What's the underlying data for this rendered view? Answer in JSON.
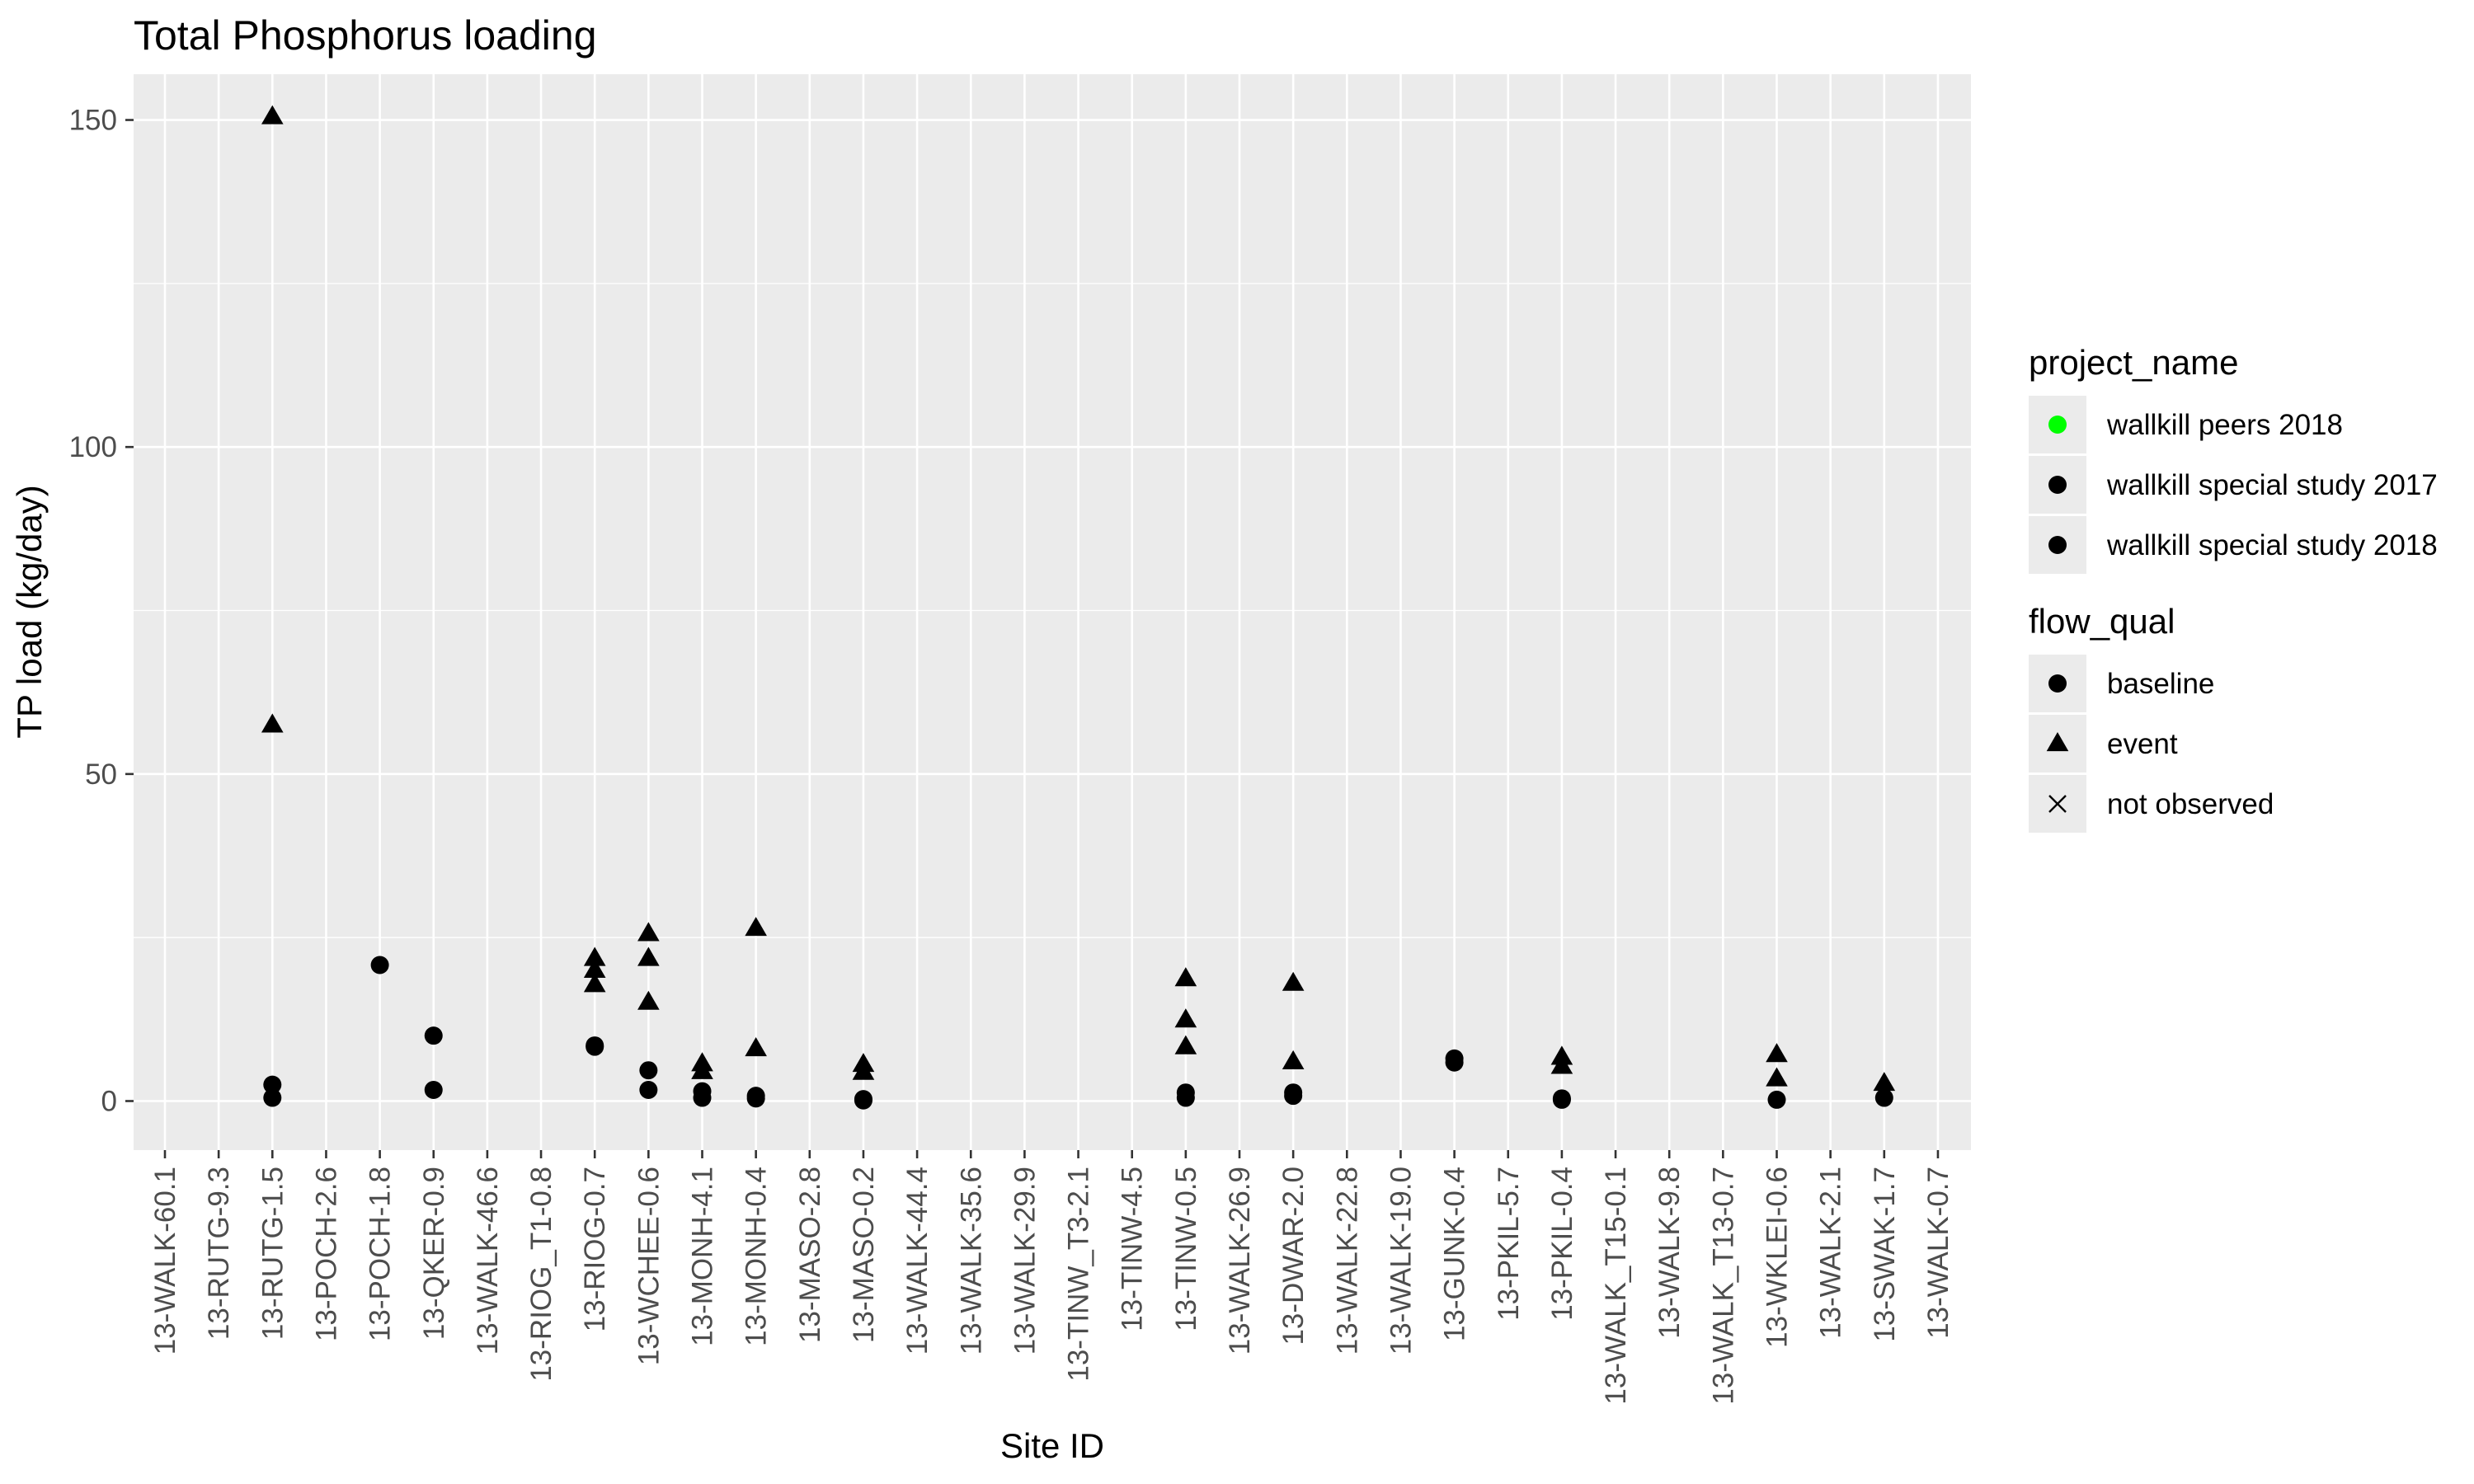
{
  "chart_data": {
    "type": "scatter",
    "title": "Total Phosphorus loading",
    "xlabel": "Site ID",
    "ylabel": "TP load (kg/day)",
    "ylim": [
      -7.5,
      157
    ],
    "yticks": [
      0,
      50,
      100,
      150
    ],
    "grid": true,
    "legend_placement": "right",
    "categories": [
      "13-WALK-60.1",
      "13-RUTG-9.3",
      "13-RUTG-1.5",
      "13-POCH-2.6",
      "13-POCH-1.8",
      "13-QKER-0.9",
      "13-WALK-46.6",
      "13-RIOG_T1-0.8",
      "13-RIOG-0.7",
      "13-WCHEE-0.6",
      "13-MONH-4.1",
      "13-MONH-0.4",
      "13-MASO-2.8",
      "13-MASO-0.2",
      "13-WALK-44.4",
      "13-WALK-35.6",
      "13-WALK-29.9",
      "13-TINW_T3-2.1",
      "13-TINW-4.5",
      "13-TINW-0.5",
      "13-WALK-26.9",
      "13-DWAR-2.0",
      "13-WALK-22.8",
      "13-WALK-19.0",
      "13-GUNK-0.4",
      "13-PKIL-5.7",
      "13-PKIL-0.4",
      "13-WALK_T15-0.1",
      "13-WALK-9.8",
      "13-WALK_T13-0.7",
      "13-WKLEI-0.6",
      "13-WALK-2.1",
      "13-SWAK-1.7",
      "13-WALK-0.7"
    ],
    "points": [
      {
        "x": "13-RUTG-1.5",
        "y": 150.5,
        "shape": "event"
      },
      {
        "x": "13-RUTG-1.5",
        "y": 57.5,
        "shape": "event"
      },
      {
        "x": "13-RUTG-1.5",
        "y": 2.5,
        "shape": "baseline"
      },
      {
        "x": "13-RUTG-1.5",
        "y": 0.5,
        "shape": "baseline"
      },
      {
        "x": "13-POCH-1.8",
        "y": 20.8,
        "shape": "baseline"
      },
      {
        "x": "13-QKER-0.9",
        "y": 10.0,
        "shape": "baseline"
      },
      {
        "x": "13-QKER-0.9",
        "y": 1.7,
        "shape": "baseline"
      },
      {
        "x": "13-RIOG-0.7",
        "y": 21.8,
        "shape": "event"
      },
      {
        "x": "13-RIOG-0.7",
        "y": 20.0,
        "shape": "event"
      },
      {
        "x": "13-RIOG-0.7",
        "y": 17.8,
        "shape": "event"
      },
      {
        "x": "13-RIOG-0.7",
        "y": 8.5,
        "shape": "baseline"
      },
      {
        "x": "13-RIOG-0.7",
        "y": 8.3,
        "shape": "baseline"
      },
      {
        "x": "13-WCHEE-0.6",
        "y": 25.6,
        "shape": "event"
      },
      {
        "x": "13-WCHEE-0.6",
        "y": 21.8,
        "shape": "event"
      },
      {
        "x": "13-WCHEE-0.6",
        "y": 15.1,
        "shape": "event"
      },
      {
        "x": "13-WCHEE-0.6",
        "y": 4.7,
        "shape": "baseline"
      },
      {
        "x": "13-WCHEE-0.6",
        "y": 1.7,
        "shape": "baseline"
      },
      {
        "x": "13-MONH-4.1",
        "y": 5.7,
        "shape": "event"
      },
      {
        "x": "13-MONH-4.1",
        "y": 4.5,
        "shape": "event"
      },
      {
        "x": "13-MONH-4.1",
        "y": 1.5,
        "shape": "baseline"
      },
      {
        "x": "13-MONH-4.1",
        "y": 0.5,
        "shape": "baseline"
      },
      {
        "x": "13-MONH-0.4",
        "y": 26.4,
        "shape": "event"
      },
      {
        "x": "13-MONH-0.4",
        "y": 8.0,
        "shape": "event"
      },
      {
        "x": "13-MONH-0.4",
        "y": 0.8,
        "shape": "baseline"
      },
      {
        "x": "13-MONH-0.4",
        "y": 0.4,
        "shape": "baseline"
      },
      {
        "x": "13-MASO-0.2",
        "y": 5.6,
        "shape": "event"
      },
      {
        "x": "13-MASO-0.2",
        "y": 4.4,
        "shape": "event"
      },
      {
        "x": "13-MASO-0.2",
        "y": 0.3,
        "shape": "baseline"
      },
      {
        "x": "13-MASO-0.2",
        "y": 0.1,
        "shape": "baseline"
      },
      {
        "x": "13-TINW-0.5",
        "y": 18.7,
        "shape": "event"
      },
      {
        "x": "13-TINW-0.5",
        "y": 12.4,
        "shape": "event"
      },
      {
        "x": "13-TINW-0.5",
        "y": 8.3,
        "shape": "event"
      },
      {
        "x": "13-TINW-0.5",
        "y": 1.3,
        "shape": "baseline"
      },
      {
        "x": "13-TINW-0.5",
        "y": 0.5,
        "shape": "baseline"
      },
      {
        "x": "13-DWAR-2.0",
        "y": 18.0,
        "shape": "event"
      },
      {
        "x": "13-DWAR-2.0",
        "y": 6.0,
        "shape": "event"
      },
      {
        "x": "13-DWAR-2.0",
        "y": 1.3,
        "shape": "baseline"
      },
      {
        "x": "13-DWAR-2.0",
        "y": 0.8,
        "shape": "baseline"
      },
      {
        "x": "13-GUNK-0.4",
        "y": 6.5,
        "shape": "baseline"
      },
      {
        "x": "13-GUNK-0.4",
        "y": 5.9,
        "shape": "baseline"
      },
      {
        "x": "13-PKIL-0.4",
        "y": 6.7,
        "shape": "event"
      },
      {
        "x": "13-PKIL-0.4",
        "y": 5.3,
        "shape": "event"
      },
      {
        "x": "13-PKIL-0.4",
        "y": 0.4,
        "shape": "baseline"
      },
      {
        "x": "13-PKIL-0.4",
        "y": 0.2,
        "shape": "baseline"
      },
      {
        "x": "13-WKLEI-0.6",
        "y": 7.1,
        "shape": "event"
      },
      {
        "x": "13-WKLEI-0.6",
        "y": 3.4,
        "shape": "event"
      },
      {
        "x": "13-WKLEI-0.6",
        "y": 0.2,
        "shape": "baseline"
      },
      {
        "x": "13-SWAK-1.7",
        "y": 2.7,
        "shape": "event"
      },
      {
        "x": "13-SWAK-1.7",
        "y": 0.5,
        "shape": "baseline"
      }
    ],
    "legends": [
      {
        "title": "project_name",
        "items": [
          {
            "label": "wallkill peers 2018",
            "marker": "circle",
            "color": "#00ff00"
          },
          {
            "label": "wallkill special study 2017",
            "marker": "circle",
            "color": "#000000"
          },
          {
            "label": "wallkill special study 2018",
            "marker": "circle",
            "color": "#000000"
          }
        ]
      },
      {
        "title": "flow_qual",
        "items": [
          {
            "label": "baseline",
            "marker": "circle",
            "color": "#000000"
          },
          {
            "label": "event",
            "marker": "triangle",
            "color": "#000000"
          },
          {
            "label": "not observed",
            "marker": "cross",
            "color": "#000000"
          }
        ]
      }
    ],
    "colors": {
      "panel_background": "#ebebeb",
      "grid": "#ffffff",
      "marker": "#000000",
      "tick_text": "#4d4d4d",
      "tick_mark": "#333333"
    }
  }
}
